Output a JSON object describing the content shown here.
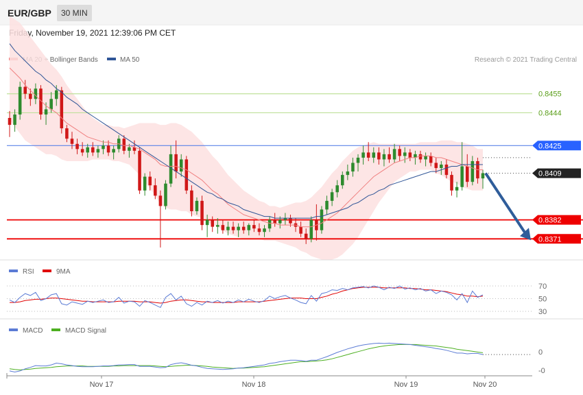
{
  "header": {
    "symbol": "EUR/GBP",
    "timeframe": "30 MIN"
  },
  "datetime": "Friday, November 19, 2021 12:39:06 PM CET",
  "legend": {
    "main": [
      {
        "label": "MA 20 + Bollinger Bands",
        "color": "#f08080"
      },
      {
        "label": "MA 50",
        "color": "#2f5597"
      }
    ],
    "rsi": [
      {
        "label": "RSI",
        "color": "#5b7bd5"
      },
      {
        "label": "9MA",
        "color": "#e00000"
      }
    ],
    "macd": [
      {
        "label": "MACD",
        "color": "#5b7bd5"
      },
      {
        "label": "MACD Signal",
        "color": "#4caf20"
      }
    ]
  },
  "credit": "Research © 2021 Trading Central",
  "levels": [
    {
      "value": "0.8455",
      "kind": "resistance-green",
      "color": "#5a9e1a"
    },
    {
      "value": "0.8444",
      "kind": "resistance-green",
      "color": "#5a9e1a"
    },
    {
      "value": "0.8425",
      "kind": "pivot",
      "color": "#2962ff"
    },
    {
      "value": "0.8409",
      "kind": "last",
      "color": "#222222"
    },
    {
      "value": "0.8382",
      "kind": "support",
      "color": "#ee0000"
    },
    {
      "value": "0.8371",
      "kind": "support",
      "color": "#ee0000"
    }
  ],
  "rsi_axis": [
    "70",
    "50",
    "30"
  ],
  "macd_axis": [
    "0",
    "-0"
  ],
  "x_labels": [
    "Nov 17",
    "Nov 18",
    "Nov 19",
    "Nov 20"
  ],
  "chart_data": {
    "type": "candlestick",
    "y_range": [
      0.836,
      0.8495
    ],
    "forecast": {
      "from": 0.8409,
      "to": 0.8371,
      "direction": "down"
    },
    "candles": [
      [
        0.8441,
        0.8445,
        0.843,
        0.8437
      ],
      [
        0.8437,
        0.8446,
        0.8433,
        0.8443
      ],
      [
        0.8443,
        0.8462,
        0.844,
        0.8459
      ],
      [
        0.8459,
        0.8463,
        0.8452,
        0.8455
      ],
      [
        0.8455,
        0.8458,
        0.8448,
        0.8452
      ],
      [
        0.8452,
        0.8461,
        0.8449,
        0.8458
      ],
      [
        0.8458,
        0.846,
        0.844,
        0.8443
      ],
      [
        0.8443,
        0.845,
        0.8437,
        0.8446
      ],
      [
        0.8446,
        0.8456,
        0.8444,
        0.8452
      ],
      [
        0.8452,
        0.846,
        0.8448,
        0.8457
      ],
      [
        0.8457,
        0.8459,
        0.8432,
        0.8435
      ],
      [
        0.8435,
        0.8437,
        0.8427,
        0.8429
      ],
      [
        0.8429,
        0.8433,
        0.8423,
        0.8426
      ],
      [
        0.8426,
        0.8429,
        0.842,
        0.8423
      ],
      [
        0.8423,
        0.8427,
        0.8419,
        0.8421
      ],
      [
        0.8421,
        0.8426,
        0.8418,
        0.8424
      ],
      [
        0.8424,
        0.8427,
        0.8419,
        0.8421
      ],
      [
        0.8421,
        0.8425,
        0.8418,
        0.8423
      ],
      [
        0.8423,
        0.8428,
        0.842,
        0.8425
      ],
      [
        0.8425,
        0.8428,
        0.8419,
        0.8421
      ],
      [
        0.8421,
        0.8425,
        0.8417,
        0.8423
      ],
      [
        0.8423,
        0.8431,
        0.8421,
        0.8429
      ],
      [
        0.8429,
        0.8431,
        0.842,
        0.8422
      ],
      [
        0.8422,
        0.8426,
        0.8418,
        0.8424
      ],
      [
        0.8424,
        0.8428,
        0.842,
        0.8422
      ],
      [
        0.8422,
        0.8424,
        0.8397,
        0.8399
      ],
      [
        0.8399,
        0.8409,
        0.8396,
        0.8407
      ],
      [
        0.8407,
        0.841,
        0.8399,
        0.8402
      ],
      [
        0.8402,
        0.8406,
        0.8394,
        0.8396
      ],
      [
        0.8396,
        0.8399,
        0.8366,
        0.839
      ],
      [
        0.839,
        0.8405,
        0.8388,
        0.8403
      ],
      [
        0.8403,
        0.8425,
        0.8401,
        0.842
      ],
      [
        0.842,
        0.8428,
        0.8406,
        0.841
      ],
      [
        0.841,
        0.842,
        0.8407,
        0.8417
      ],
      [
        0.8417,
        0.8419,
        0.8397,
        0.8399
      ],
      [
        0.8399,
        0.8402,
        0.8384,
        0.8387
      ],
      [
        0.8387,
        0.8395,
        0.8385,
        0.8393
      ],
      [
        0.8393,
        0.8396,
        0.8376,
        0.8379
      ],
      [
        0.8379,
        0.8385,
        0.8372,
        0.8382
      ],
      [
        0.8382,
        0.8384,
        0.8375,
        0.8378
      ],
      [
        0.8378,
        0.8383,
        0.8374,
        0.8379
      ],
      [
        0.8379,
        0.8382,
        0.8374,
        0.8376
      ],
      [
        0.8376,
        0.8381,
        0.8373,
        0.8378
      ],
      [
        0.8378,
        0.8381,
        0.8374,
        0.8376
      ],
      [
        0.8376,
        0.838,
        0.8372,
        0.8378
      ],
      [
        0.8378,
        0.8381,
        0.8374,
        0.8376
      ],
      [
        0.8376,
        0.838,
        0.8373,
        0.8379
      ],
      [
        0.8379,
        0.8382,
        0.8375,
        0.8377
      ],
      [
        0.8377,
        0.838,
        0.8373,
        0.8375
      ],
      [
        0.8375,
        0.8379,
        0.8372,
        0.8377
      ],
      [
        0.8377,
        0.8384,
        0.8375,
        0.8382
      ],
      [
        0.8382,
        0.8386,
        0.8378,
        0.838
      ],
      [
        0.838,
        0.8384,
        0.8377,
        0.8382
      ],
      [
        0.8382,
        0.8386,
        0.8379,
        0.8383
      ],
      [
        0.8383,
        0.8385,
        0.8378,
        0.838
      ],
      [
        0.838,
        0.8383,
        0.8375,
        0.8378
      ],
      [
        0.8378,
        0.8381,
        0.8372,
        0.8374
      ],
      [
        0.8374,
        0.8377,
        0.8368,
        0.8371
      ],
      [
        0.8371,
        0.8384,
        0.8369,
        0.8382
      ],
      [
        0.8382,
        0.8391,
        0.837,
        0.8376
      ],
      [
        0.8376,
        0.839,
        0.8374,
        0.8388
      ],
      [
        0.8388,
        0.8396,
        0.8385,
        0.8393
      ],
      [
        0.8393,
        0.84,
        0.839,
        0.8398
      ],
      [
        0.8398,
        0.8405,
        0.8395,
        0.8402
      ],
      [
        0.8402,
        0.841,
        0.84,
        0.8408
      ],
      [
        0.8408,
        0.8414,
        0.8405,
        0.841
      ],
      [
        0.841,
        0.8418,
        0.8407,
        0.8415
      ],
      [
        0.8415,
        0.842,
        0.841,
        0.8418
      ],
      [
        0.8418,
        0.8425,
        0.8414,
        0.8421
      ],
      [
        0.8421,
        0.8427,
        0.8416,
        0.8418
      ],
      [
        0.8418,
        0.8424,
        0.8415,
        0.8421
      ],
      [
        0.8421,
        0.8424,
        0.8414,
        0.8417
      ],
      [
        0.8417,
        0.8423,
        0.8413,
        0.842
      ],
      [
        0.842,
        0.8424,
        0.8415,
        0.8417
      ],
      [
        0.8417,
        0.8426,
        0.8415,
        0.8423
      ],
      [
        0.8423,
        0.8425,
        0.8416,
        0.8419
      ],
      [
        0.8419,
        0.8424,
        0.8415,
        0.8421
      ],
      [
        0.8421,
        0.8423,
        0.8416,
        0.8418
      ],
      [
        0.8418,
        0.8422,
        0.8414,
        0.842
      ],
      [
        0.842,
        0.8422,
        0.8415,
        0.8417
      ],
      [
        0.8417,
        0.8421,
        0.8413,
        0.8419
      ],
      [
        0.8419,
        0.8421,
        0.8413,
        0.8415
      ],
      [
        0.8415,
        0.8418,
        0.8409,
        0.8412
      ],
      [
        0.8412,
        0.8416,
        0.8408,
        0.8414
      ],
      [
        0.8414,
        0.8417,
        0.8406,
        0.8408
      ],
      [
        0.8408,
        0.841,
        0.8396,
        0.8399
      ],
      [
        0.8399,
        0.8404,
        0.8395,
        0.8401
      ],
      [
        0.8401,
        0.8427,
        0.8399,
        0.8413
      ],
      [
        0.8413,
        0.842,
        0.8401,
        0.8404
      ],
      [
        0.8404,
        0.8419,
        0.8402,
        0.8416
      ],
      [
        0.8416,
        0.8418,
        0.8403,
        0.8406
      ],
      [
        0.8406,
        0.8411,
        0.84,
        0.8409
      ]
    ],
    "ma20": [
      0.847,
      0.8467,
      0.8464,
      0.846,
      0.8457,
      0.8454,
      0.8451,
      0.8448,
      0.8446,
      0.8444,
      0.8441,
      0.8438,
      0.8436,
      0.8434,
      0.8432,
      0.843,
      0.8429,
      0.8428,
      0.8427,
      0.8427,
      0.8426,
      0.8426,
      0.8425,
      0.8425,
      0.8424,
      0.8423,
      0.8421,
      0.8419,
      0.8417,
      0.8414,
      0.8413,
      0.8413,
      0.8413,
      0.8412,
      0.8411,
      0.8409,
      0.8407,
      0.8405,
      0.8402,
      0.8399,
      0.8397,
      0.8394,
      0.8391,
      0.8389,
      0.8387,
      0.8385,
      0.8384,
      0.8383,
      0.8382,
      0.8381,
      0.838,
      0.838,
      0.8379,
      0.8379,
      0.8379,
      0.8379,
      0.8378,
      0.8378,
      0.8378,
      0.8379,
      0.838,
      0.8382,
      0.8384,
      0.8386,
      0.8389,
      0.8392,
      0.8395,
      0.8398,
      0.8401,
      0.8404,
      0.8407,
      0.8409,
      0.8411,
      0.8413,
      0.8415,
      0.8416,
      0.8417,
      0.8418,
      0.8418,
      0.8419,
      0.8419,
      0.8419,
      0.8418,
      0.8418,
      0.8417,
      0.8416,
      0.8415,
      0.8414,
      0.8413,
      0.8412,
      0.8411,
      0.8411
    ],
    "ma50": [
      0.8484,
      0.848,
      0.8477,
      0.8474,
      0.8471,
      0.8468,
      0.8466,
      0.8463,
      0.8461,
      0.8458,
      0.8456,
      0.8453,
      0.8451,
      0.8449,
      0.8446,
      0.8444,
      0.8442,
      0.844,
      0.8438,
      0.8436,
      0.8434,
      0.8432,
      0.843,
      0.8428,
      0.8426,
      0.8424,
      0.8422,
      0.842,
      0.8418,
      0.8416,
      0.8414,
      0.8412,
      0.841,
      0.8408,
      0.8406,
      0.8404,
      0.8402,
      0.84,
      0.8398,
      0.8397,
      0.8395,
      0.8394,
      0.8392,
      0.8391,
      0.839,
      0.8388,
      0.8387,
      0.8386,
      0.8385,
      0.8384,
      0.8384,
      0.8383,
      0.8383,
      0.8383,
      0.8383,
      0.8383,
      0.8383,
      0.8383,
      0.8383,
      0.8384,
      0.8384,
      0.8385,
      0.8386,
      0.8387,
      0.8388,
      0.8389,
      0.8391,
      0.8392,
      0.8394,
      0.8396,
      0.8397,
      0.8399,
      0.84,
      0.8402,
      0.8403,
      0.8404,
      0.8405,
      0.8406,
      0.8407,
      0.8408,
      0.8409,
      0.841,
      0.841,
      0.8411,
      0.8412,
      0.8413,
      0.8413,
      0.8414,
      0.8414,
      0.8414,
      0.8414,
      0.8414
    ],
    "bb_width": [
      0.003,
      0.0031,
      0.0032,
      0.0032,
      0.0031,
      0.003,
      0.0029,
      0.0028,
      0.0026,
      0.0025,
      0.0024,
      0.0022,
      0.002,
      0.0018,
      0.0016,
      0.0014,
      0.0012,
      0.0011,
      0.001,
      0.001,
      0.001,
      0.001,
      0.001,
      0.0011,
      0.0013,
      0.0015,
      0.0017,
      0.0019,
      0.0021,
      0.0023,
      0.0024,
      0.0025,
      0.0025,
      0.0025,
      0.0024,
      0.0024,
      0.0023,
      0.0022,
      0.0021,
      0.002,
      0.0019,
      0.0018,
      0.0017,
      0.0016,
      0.0015,
      0.0014,
      0.0013,
      0.0012,
      0.0011,
      0.0011,
      0.001,
      0.001,
      0.001,
      0.0011,
      0.0012,
      0.0013,
      0.0014,
      0.0015,
      0.0017,
      0.0019,
      0.0021,
      0.0023,
      0.0025,
      0.0026,
      0.0027,
      0.0027,
      0.0027,
      0.0026,
      0.0024,
      0.0022,
      0.002,
      0.0017,
      0.0015,
      0.0013,
      0.0011,
      0.001,
      0.0009,
      0.0008,
      0.0008,
      0.0008,
      0.0008,
      0.0008,
      0.0009,
      0.001,
      0.0011,
      0.0012,
      0.0012,
      0.0013,
      0.0013,
      0.0013,
      0.0012,
      0.0012
    ],
    "rsi": [
      48,
      44,
      52,
      58,
      55,
      60,
      47,
      50,
      56,
      58,
      42,
      40,
      45,
      43,
      41,
      46,
      44,
      46,
      48,
      44,
      45,
      52,
      43,
      46,
      45,
      38,
      47,
      44,
      40,
      36,
      52,
      58,
      48,
      54,
      42,
      38,
      44,
      40,
      46,
      44,
      47,
      43,
      46,
      44,
      48,
      45,
      49,
      46,
      44,
      47,
      54,
      50,
      53,
      55,
      51,
      48,
      44,
      42,
      55,
      46,
      58,
      60,
      64,
      63,
      66,
      64,
      67,
      68,
      69,
      67,
      70,
      68,
      64,
      68,
      66,
      70,
      65,
      67,
      64,
      66,
      62,
      64,
      58,
      62,
      60,
      56,
      48,
      58,
      44,
      62,
      52,
      56
    ],
    "rsi_ma": [
      44,
      44,
      45,
      47,
      48,
      49,
      49,
      50,
      51,
      51,
      50,
      49,
      48,
      47,
      46,
      46,
      45,
      45,
      45,
      45,
      45,
      46,
      46,
      46,
      46,
      45,
      45,
      45,
      44,
      43,
      44,
      46,
      47,
      48,
      48,
      47,
      46,
      45,
      45,
      44,
      44,
      44,
      44,
      44,
      45,
      45,
      45,
      45,
      45,
      46,
      47,
      48,
      49,
      50,
      51,
      51,
      51,
      50,
      50,
      50,
      52,
      54,
      57,
      59,
      62,
      64,
      66,
      67,
      68,
      68,
      68,
      68,
      67,
      67,
      67,
      67,
      67,
      66,
      66,
      65,
      64,
      64,
      63,
      62,
      61,
      59,
      57,
      56,
      54,
      54,
      53,
      54
    ],
    "macd": [
      -4.6,
      -4.9,
      -4.6,
      -4.0,
      -3.6,
      -3.1,
      -3.2,
      -3.2,
      -2.9,
      -2.4,
      -2.6,
      -2.9,
      -3.1,
      -3.3,
      -3.4,
      -3.4,
      -3.4,
      -3.3,
      -3.2,
      -3.2,
      -3.1,
      -2.9,
      -2.9,
      -2.8,
      -2.8,
      -3.3,
      -3.3,
      -3.3,
      -3.5,
      -3.7,
      -3.6,
      -2.8,
      -2.5,
      -2.3,
      -2.6,
      -3.0,
      -3.2,
      -3.6,
      -3.9,
      -4.0,
      -4.1,
      -4.2,
      -4.1,
      -4.0,
      -3.8,
      -3.7,
      -3.5,
      -3.3,
      -3.1,
      -2.9,
      -2.5,
      -2.3,
      -2.0,
      -1.8,
      -1.6,
      -1.6,
      -1.7,
      -1.9,
      -1.6,
      -1.6,
      -1.1,
      -0.6,
      0.0,
      0.6,
      1.1,
      1.6,
      2.0,
      2.4,
      2.7,
      2.9,
      3.1,
      3.2,
      3.1,
      3.2,
      3.1,
      3.0,
      2.9,
      2.8,
      2.6,
      2.4,
      2.2,
      2.0,
      1.7,
      1.5,
      1.2,
      0.8,
      0.4,
      0.4,
      0.2,
      0.3,
      0.3,
      0.0
    ],
    "macd_signal": [
      -4.0,
      -4.2,
      -4.3,
      -4.2,
      -4.1,
      -3.9,
      -3.8,
      -3.7,
      -3.6,
      -3.4,
      -3.3,
      -3.2,
      -3.2,
      -3.2,
      -3.2,
      -3.3,
      -3.3,
      -3.3,
      -3.3,
      -3.3,
      -3.2,
      -3.2,
      -3.1,
      -3.1,
      -3.1,
      -3.1,
      -3.1,
      -3.1,
      -3.2,
      -3.3,
      -3.4,
      -3.3,
      -3.2,
      -3.1,
      -3.0,
      -3.0,
      -3.1,
      -3.2,
      -3.3,
      -3.5,
      -3.6,
      -3.7,
      -3.8,
      -3.9,
      -3.8,
      -3.8,
      -3.7,
      -3.6,
      -3.5,
      -3.4,
      -3.2,
      -3.0,
      -2.8,
      -2.6,
      -2.4,
      -2.2,
      -2.0,
      -2.0,
      -1.9,
      -1.8,
      -1.7,
      -1.5,
      -1.2,
      -0.8,
      -0.4,
      0.0,
      0.4,
      0.8,
      1.2,
      1.6,
      1.9,
      2.2,
      2.4,
      2.6,
      2.7,
      2.8,
      2.8,
      2.8,
      2.8,
      2.7,
      2.6,
      2.5,
      2.4,
      2.2,
      2.0,
      1.8,
      1.5,
      1.3,
      1.1,
      0.9,
      0.7,
      0.5
    ]
  }
}
